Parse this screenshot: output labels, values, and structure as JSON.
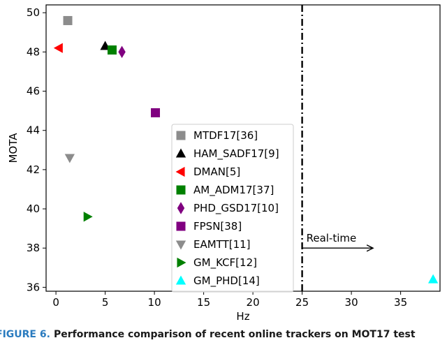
{
  "chart_data": {
    "type": "scatter",
    "xlabel": "Hz",
    "ylabel": "MOTA",
    "xlim": [
      -1,
      39
    ],
    "ylim": [
      35.8,
      50.4
    ],
    "xticks": [
      0,
      5,
      10,
      15,
      20,
      25,
      30,
      35
    ],
    "yticks": [
      36,
      38,
      40,
      42,
      44,
      46,
      48,
      50
    ],
    "grid": false,
    "legend_position": "center",
    "series": [
      {
        "name": "MTDF17[36]",
        "marker": "square",
        "color": "#8c8c8c",
        "points": [
          {
            "x": 1.2,
            "y": 49.6
          }
        ]
      },
      {
        "name": "HAM_SADF17[9]",
        "marker": "triangle-up",
        "color": "#000000",
        "points": [
          {
            "x": 5.0,
            "y": 48.3
          }
        ]
      },
      {
        "name": "DMAN[5]",
        "marker": "triangle-left",
        "color": "#ff0000",
        "points": [
          {
            "x": 0.3,
            "y": 48.2
          }
        ]
      },
      {
        "name": "AM_ADM17[37]",
        "marker": "square",
        "color": "#008000",
        "points": [
          {
            "x": 5.7,
            "y": 48.1
          }
        ]
      },
      {
        "name": "PHD_GSD17[10]",
        "marker": "diamond",
        "color": "#800080",
        "points": [
          {
            "x": 6.7,
            "y": 48.0
          }
        ]
      },
      {
        "name": "FPSN[38]",
        "marker": "square",
        "color": "#800080",
        "points": [
          {
            "x": 10.1,
            "y": 44.9
          }
        ]
      },
      {
        "name": "EAMTT[11]",
        "marker": "triangle-down",
        "color": "#8c8c8c",
        "points": [
          {
            "x": 1.4,
            "y": 42.6
          }
        ]
      },
      {
        "name": "GM_KCF[12]",
        "marker": "triangle-right",
        "color": "#008000",
        "points": [
          {
            "x": 3.2,
            "y": 39.6
          }
        ]
      },
      {
        "name": "GM_PHD[14]",
        "marker": "triangle-up",
        "color": "#00ffff",
        "points": [
          {
            "x": 38.3,
            "y": 36.4
          }
        ]
      }
    ],
    "vline": {
      "x": 25,
      "style": "dashdot",
      "color": "#000000"
    },
    "annotation": {
      "text": "Real-time",
      "arrow_from": [
        25,
        38
      ],
      "arrow_to": [
        32.2,
        38
      ]
    }
  },
  "caption": {
    "lead": "FIGURE 6.",
    "rest": "Performance comparison of recent online trackers on MOT17 test"
  }
}
